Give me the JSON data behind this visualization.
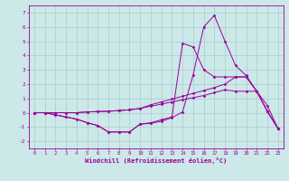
{
  "xlabel": "Windchill (Refroidissement éolien,°C)",
  "bg_color": "#cce8e8",
  "grid_color": "#aacccc",
  "line_color": "#990099",
  "x_values": [
    0,
    1,
    2,
    3,
    4,
    5,
    6,
    7,
    8,
    9,
    10,
    11,
    12,
    13,
    14,
    15,
    16,
    17,
    18,
    19,
    20,
    21,
    22,
    23
  ],
  "line1": [
    0,
    0,
    -0.15,
    -0.3,
    -0.45,
    -0.7,
    -0.9,
    -1.35,
    -1.35,
    -1.35,
    -0.8,
    -0.75,
    -0.6,
    -0.35,
    0.05,
    2.65,
    6.0,
    6.8,
    5.0,
    3.3,
    2.6,
    1.5,
    0.1,
    -1.1
  ],
  "line2": [
    0,
    0,
    -0.15,
    -0.3,
    -0.45,
    -0.7,
    -0.9,
    -1.35,
    -1.35,
    -1.35,
    -0.8,
    -0.7,
    -0.5,
    -0.3,
    4.85,
    4.6,
    3.0,
    2.5,
    2.5,
    2.5,
    2.5,
    1.5,
    0.1,
    -1.1
  ],
  "line3": [
    0,
    0,
    0.0,
    0.0,
    0.0,
    0.05,
    0.08,
    0.1,
    0.15,
    0.2,
    0.3,
    0.45,
    0.6,
    0.75,
    0.9,
    1.05,
    1.2,
    1.4,
    1.6,
    1.5,
    1.5,
    1.5,
    0.5,
    -1.1
  ],
  "line4": [
    0,
    0,
    0.0,
    0.0,
    0.0,
    0.05,
    0.08,
    0.1,
    0.15,
    0.2,
    0.3,
    0.55,
    0.75,
    0.95,
    1.15,
    1.35,
    1.55,
    1.75,
    2.0,
    2.5,
    2.5,
    1.5,
    0.1,
    -1.1
  ],
  "ylim": [
    -2.5,
    7.5
  ],
  "xlim": [
    -0.5,
    23.5
  ],
  "yticks": [
    -2,
    -1,
    0,
    1,
    2,
    3,
    4,
    5,
    6,
    7
  ],
  "xticks": [
    0,
    1,
    2,
    3,
    4,
    5,
    6,
    7,
    8,
    9,
    10,
    11,
    12,
    13,
    14,
    15,
    16,
    17,
    18,
    19,
    20,
    21,
    22,
    23
  ]
}
